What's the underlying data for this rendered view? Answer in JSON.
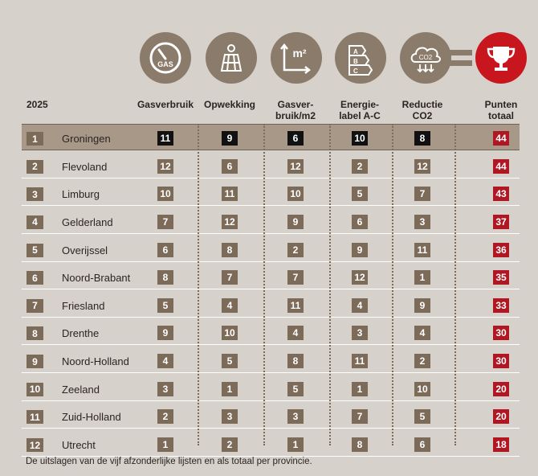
{
  "year": "2025",
  "icons": {
    "gas": "gas-meter-icon",
    "gas_text": "GAS",
    "solar": "solar-panel-icon",
    "m2": "gas-per-m2-icon",
    "m2_text": "m²",
    "label": "energy-label-icon",
    "label_letters": [
      "A",
      "B",
      "C"
    ],
    "co2": "co2-reduction-icon",
    "co2_text": "CO2",
    "trophy": "trophy-icon"
  },
  "columns": [
    {
      "line1": "Gasverbruik",
      "line2": ""
    },
    {
      "line1": "Opwekking",
      "line2": ""
    },
    {
      "line1": "Gasver-",
      "line2": "bruik/m2"
    },
    {
      "line1": "Energie-",
      "line2": "label A-C"
    },
    {
      "line1": "Reductie",
      "line2": "CO2"
    },
    {
      "line1": "Punten",
      "line2": "totaal"
    }
  ],
  "rows": [
    {
      "rank": "1",
      "province": "Groningen",
      "scores": [
        "11",
        "9",
        "6",
        "10",
        "8"
      ],
      "total": "44"
    },
    {
      "rank": "2",
      "province": "Flevoland",
      "scores": [
        "12",
        "6",
        "12",
        "2",
        "12"
      ],
      "total": "44"
    },
    {
      "rank": "3",
      "province": "Limburg",
      "scores": [
        "10",
        "11",
        "10",
        "5",
        "7"
      ],
      "total": "43"
    },
    {
      "rank": "4",
      "province": "Gelderland",
      "scores": [
        "7",
        "12",
        "9",
        "6",
        "3"
      ],
      "total": "37"
    },
    {
      "rank": "5",
      "province": "Overijssel",
      "scores": [
        "6",
        "8",
        "2",
        "9",
        "11"
      ],
      "total": "36"
    },
    {
      "rank": "6",
      "province": "Noord-Brabant",
      "scores": [
        "8",
        "7",
        "7",
        "12",
        "1"
      ],
      "total": "35"
    },
    {
      "rank": "7",
      "province": "Friesland",
      "scores": [
        "5",
        "4",
        "11",
        "4",
        "9"
      ],
      "total": "33"
    },
    {
      "rank": "8",
      "province": "Drenthe",
      "scores": [
        "9",
        "10",
        "4",
        "3",
        "4"
      ],
      "total": "30"
    },
    {
      "rank": "9",
      "province": "Noord-Holland",
      "scores": [
        "4",
        "5",
        "8",
        "11",
        "2"
      ],
      "total": "30"
    },
    {
      "rank": "10",
      "province": "Zeeland",
      "scores": [
        "3",
        "1",
        "5",
        "1",
        "10"
      ],
      "total": "20"
    },
    {
      "rank": "11",
      "province": "Zuid-Holland",
      "scores": [
        "2",
        "3",
        "3",
        "7",
        "5"
      ],
      "total": "20"
    },
    {
      "rank": "12",
      "province": "Utrecht",
      "scores": [
        "1",
        "2",
        "1",
        "8",
        "6"
      ],
      "total": "18"
    }
  ],
  "footnote": "De uitslagen van de vijf afzonderlijke lijsten en als totaal per provincie.",
  "colors": {
    "brown": "#7d6b5a",
    "highlight_row": "#a89888",
    "winner_cell": "#111111",
    "total_cell": "#b01722",
    "trophy": "#c8161e"
  }
}
